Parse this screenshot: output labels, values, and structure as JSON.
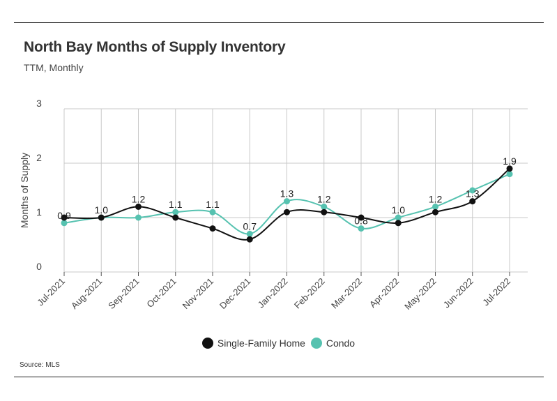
{
  "header": {
    "title": "North Bay Months of Supply Inventory",
    "subtitle": "TTM, Monthly"
  },
  "footer": {
    "source": "Source:  MLS"
  },
  "colors": {
    "single_family": "#111111",
    "condo": "#56c2b0",
    "grid": "#c8c8c8",
    "axis_text": "#444444"
  },
  "chart_data": {
    "type": "line",
    "title": "North Bay Months of Supply Inventory",
    "subtitle": "TTM, Monthly",
    "ylabel": "Months of Supply",
    "xlabel": "",
    "ylim": [
      0,
      3
    ],
    "yticks": [
      0,
      1,
      2,
      3
    ],
    "grid": true,
    "legend": "bottom-center",
    "categories": [
      "Jul-2021",
      "Aug-2021",
      "Sep-2021",
      "Oct-2021",
      "Nov-2021",
      "Dec-2021",
      "Jan-2022",
      "Feb-2022",
      "Mar-2022",
      "Apr-2022",
      "May-2022",
      "Jun-2022",
      "Jul-2022"
    ],
    "series": [
      {
        "name": "Single-Family Home",
        "color": "#111111",
        "values": [
          1.0,
          1.0,
          1.2,
          1.0,
          0.8,
          0.6,
          1.1,
          1.1,
          1.0,
          0.9,
          1.1,
          1.3,
          1.9
        ]
      },
      {
        "name": "Condo",
        "color": "#56c2b0",
        "values": [
          0.9,
          1.0,
          1.0,
          1.1,
          1.1,
          0.7,
          1.3,
          1.2,
          0.8,
          1.0,
          1.2,
          1.5,
          1.8
        ]
      }
    ],
    "data_labels": [
      "0.9",
      "1.0",
      "1.2",
      "1.1",
      "1.1",
      "0.7",
      "1.3",
      "1.2",
      "0.8",
      "1.0",
      "1.2",
      "1.3",
      "1.9"
    ],
    "data_label_values": [
      0.9,
      1.0,
      1.2,
      1.1,
      1.1,
      0.7,
      1.3,
      1.2,
      0.8,
      1.0,
      1.2,
      1.3,
      1.9
    ]
  }
}
